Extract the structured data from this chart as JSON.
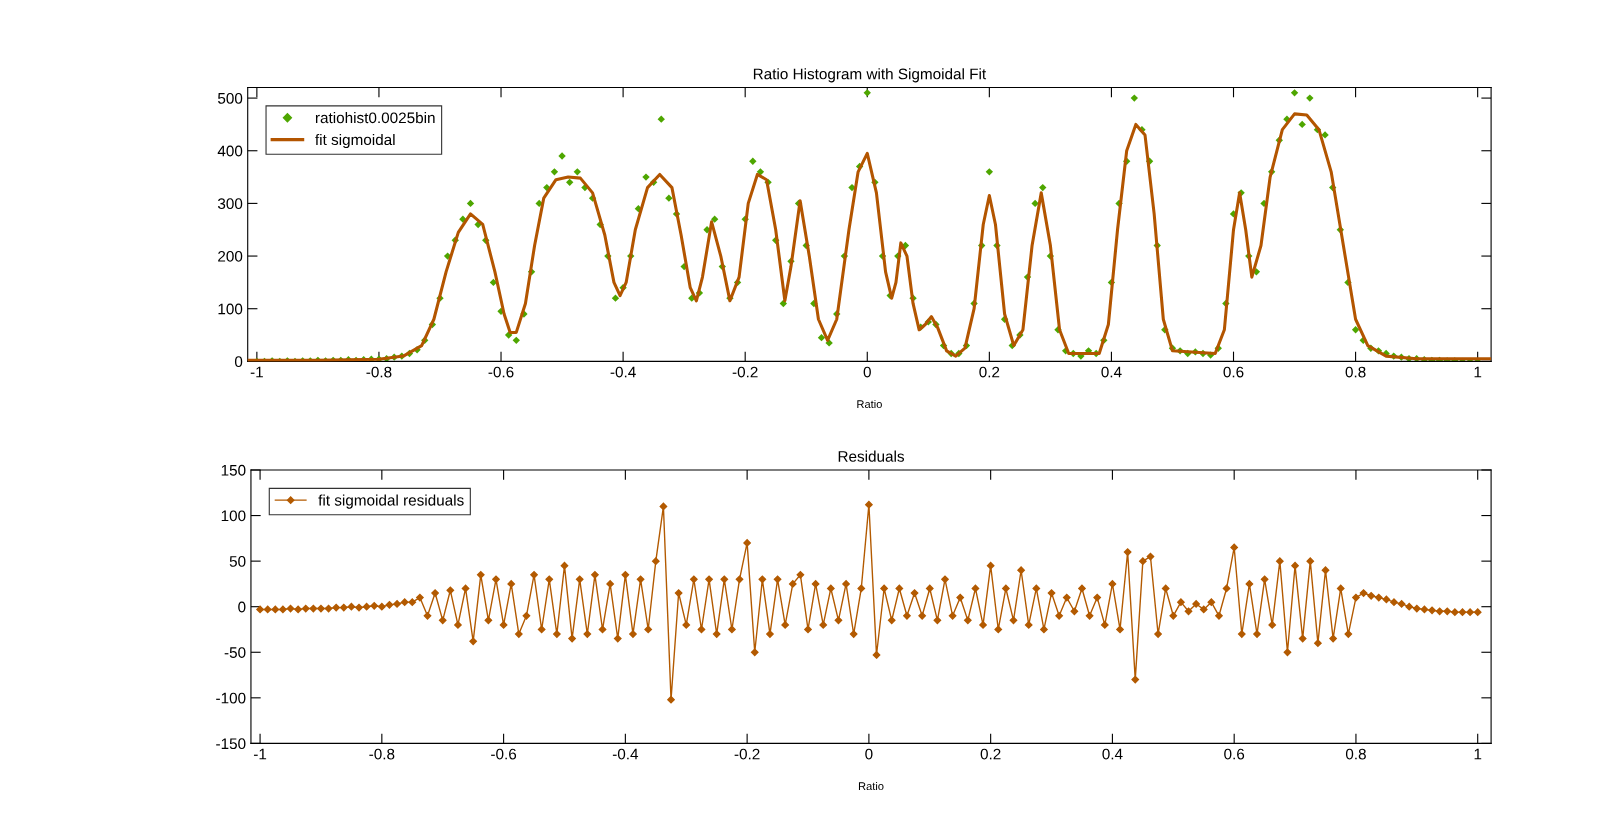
{
  "chart_data": [
    {
      "type": "scatter",
      "title": "Ratio Histogram with Sigmoidal Fit",
      "xlabel": "Ratio",
      "xlim": [
        -1.015,
        1.022
      ],
      "xticks": [
        -1,
        -0.8,
        -0.6,
        -0.4,
        -0.2,
        0,
        0.2,
        0.4,
        0.6,
        0.8,
        1
      ],
      "ylim": [
        0,
        520
      ],
      "yticks": [
        0,
        100,
        200,
        300,
        400,
        500
      ],
      "grid": false,
      "legend": "top left",
      "series": [
        {
          "name": "ratiohist0.0025bin",
          "marker": "diamond",
          "color": "#4ea600",
          "x": [
            -1,
            -0.9875,
            -0.975,
            -0.9625,
            -0.95,
            -0.9375,
            -0.925,
            -0.9125,
            -0.9,
            -0.8875,
            -0.875,
            -0.8625,
            -0.85,
            -0.8375,
            -0.825,
            -0.8125,
            -0.8,
            -0.7875,
            -0.775,
            -0.7625,
            -0.75,
            -0.7375,
            -0.725,
            -0.7125,
            -0.7,
            -0.6875,
            -0.675,
            -0.6625,
            -0.65,
            -0.6375,
            -0.625,
            -0.6125,
            -0.6,
            -0.5875,
            -0.575,
            -0.5625,
            -0.55,
            -0.5375,
            -0.525,
            -0.5125,
            -0.5,
            -0.4875,
            -0.475,
            -0.4625,
            -0.45,
            -0.4375,
            -0.425,
            -0.4125,
            -0.4,
            -0.3875,
            -0.375,
            -0.3625,
            -0.35,
            -0.3375,
            -0.325,
            -0.3125,
            -0.3,
            -0.2875,
            -0.275,
            -0.2625,
            -0.25,
            -0.2375,
            -0.225,
            -0.2125,
            -0.2,
            -0.1875,
            -0.175,
            -0.1625,
            -0.15,
            -0.1375,
            -0.125,
            -0.1125,
            -0.1,
            -0.0875,
            -0.075,
            -0.0625,
            -0.05,
            -0.0375,
            -0.025,
            -0.0125,
            0,
            0.0125,
            0.025,
            0.0375,
            0.05,
            0.0625,
            0.075,
            0.0875,
            0.1,
            0.1125,
            0.125,
            0.1375,
            0.15,
            0.1625,
            0.175,
            0.1875,
            0.2,
            0.2125,
            0.225,
            0.2375,
            0.25,
            0.2625,
            0.275,
            0.2875,
            0.3,
            0.3125,
            0.325,
            0.3375,
            0.35,
            0.3625,
            0.375,
            0.3875,
            0.4,
            0.4125,
            0.425,
            0.4375,
            0.45,
            0.4625,
            0.475,
            0.4875,
            0.5,
            0.5125,
            0.525,
            0.5375,
            0.55,
            0.5625,
            0.575,
            0.5875,
            0.6,
            0.6125,
            0.625,
            0.6375,
            0.65,
            0.6625,
            0.675,
            0.6875,
            0.7,
            0.7125,
            0.725,
            0.7375,
            0.75,
            0.7625,
            0.775,
            0.7875,
            0.8,
            0.8125,
            0.825,
            0.8375,
            0.85,
            0.8625,
            0.875,
            0.8875,
            0.9,
            0.9125,
            0.925,
            0.9375,
            0.95,
            0.9625,
            0.975,
            0.9875,
            1
          ],
          "values": [
            0,
            0,
            1,
            0,
            1,
            0,
            1,
            1,
            2,
            1,
            2,
            2,
            3,
            2,
            3,
            4,
            4,
            5,
            8,
            10,
            15,
            22,
            40,
            70,
            120,
            200,
            230,
            270,
            300,
            260,
            230,
            150,
            95,
            50,
            40,
            90,
            170,
            300,
            330,
            360,
            390,
            340,
            360,
            330,
            310,
            260,
            200,
            120,
            140,
            200,
            290,
            350,
            340,
            460,
            310,
            280,
            180,
            120,
            130,
            250,
            270,
            180,
            120,
            150,
            270,
            380,
            360,
            340,
            230,
            110,
            190,
            300,
            220,
            110,
            45,
            35,
            90,
            200,
            330,
            370,
            510,
            340,
            200,
            125,
            200,
            220,
            120,
            65,
            75,
            70,
            30,
            15,
            15,
            30,
            110,
            220,
            360,
            220,
            80,
            30,
            50,
            160,
            300,
            330,
            200,
            60,
            20,
            15,
            10,
            20,
            15,
            40,
            150,
            300,
            380,
            500,
            440,
            380,
            220,
            60,
            25,
            20,
            15,
            18,
            15,
            12,
            25,
            110,
            280,
            320,
            200,
            170,
            300,
            360,
            420,
            460,
            510,
            450,
            500,
            440,
            430,
            330,
            250,
            150,
            60,
            40,
            25,
            20,
            15,
            10,
            8,
            5,
            5,
            3,
            2,
            2,
            1,
            1,
            0,
            0,
            0
          ]
        },
        {
          "name": "fit sigmoidal",
          "type": "line",
          "marker": "none",
          "color": "#b35500",
          "x": [
            -1.015,
            -0.9,
            -0.8,
            -0.76,
            -0.73,
            -0.71,
            -0.69,
            -0.67,
            -0.65,
            -0.63,
            -0.61,
            -0.595,
            -0.585,
            -0.575,
            -0.56,
            -0.545,
            -0.53,
            -0.51,
            -0.49,
            -0.47,
            -0.45,
            -0.43,
            -0.415,
            -0.405,
            -0.395,
            -0.38,
            -0.36,
            -0.34,
            -0.32,
            -0.305,
            -0.29,
            -0.28,
            -0.27,
            -0.255,
            -0.24,
            -0.225,
            -0.21,
            -0.195,
            -0.18,
            -0.165,
            -0.15,
            -0.135,
            -0.125,
            -0.11,
            -0.095,
            -0.08,
            -0.065,
            -0.05,
            -0.03,
            -0.015,
            0,
            0.015,
            0.03,
            0.04,
            0.047,
            0.055,
            0.065,
            0.075,
            0.085,
            0.095,
            0.105,
            0.115,
            0.13,
            0.145,
            0.16,
            0.175,
            0.19,
            0.2,
            0.21,
            0.225,
            0.24,
            0.255,
            0.27,
            0.285,
            0.3,
            0.315,
            0.33,
            0.38,
            0.395,
            0.41,
            0.425,
            0.44,
            0.455,
            0.47,
            0.485,
            0.5,
            0.57,
            0.585,
            0.6,
            0.61,
            0.62,
            0.63,
            0.645,
            0.66,
            0.68,
            0.7,
            0.72,
            0.74,
            0.76,
            0.78,
            0.8,
            0.82,
            0.85,
            0.9,
            1.022
          ],
          "values": [
            2,
            2,
            4,
            10,
            30,
            80,
            170,
            245,
            280,
            260,
            170,
            90,
            55,
            55,
            110,
            220,
            310,
            345,
            350,
            348,
            320,
            240,
            150,
            125,
            150,
            250,
            330,
            355,
            330,
            240,
            140,
            115,
            160,
            265,
            200,
            115,
            160,
            300,
            355,
            345,
            250,
            115,
            180,
            305,
            200,
            80,
            40,
            80,
            250,
            360,
            395,
            320,
            170,
            120,
            150,
            225,
            200,
            110,
            60,
            70,
            85,
            65,
            20,
            10,
            25,
            100,
            260,
            315,
            260,
            90,
            30,
            60,
            220,
            320,
            220,
            60,
            15,
            15,
            70,
            250,
            400,
            450,
            430,
            280,
            80,
            20,
            15,
            60,
            250,
            320,
            250,
            160,
            220,
            350,
            440,
            470,
            468,
            440,
            360,
            220,
            80,
            30,
            10,
            5,
            5
          ]
        }
      ]
    },
    {
      "type": "line",
      "title": "Residuals",
      "xlabel": "Ratio",
      "xlim": [
        -1.015,
        1.022
      ],
      "xticks": [
        -1,
        -0.8,
        -0.6,
        -0.4,
        -0.2,
        0,
        0.2,
        0.4,
        0.6,
        0.8,
        1
      ],
      "ylim": [
        -150,
        150
      ],
      "yticks": [
        -150,
        -100,
        -50,
        0,
        50,
        100,
        150
      ],
      "grid": false,
      "legend": "top left",
      "series": [
        {
          "name": "fit sigmoidal residuals",
          "marker": "diamond",
          "line_style": "solid",
          "color": "#b35a00",
          "x": [
            -1,
            -0.9875,
            -0.975,
            -0.9625,
            -0.95,
            -0.9375,
            -0.925,
            -0.9125,
            -0.9,
            -0.8875,
            -0.875,
            -0.8625,
            -0.85,
            -0.8375,
            -0.825,
            -0.8125,
            -0.8,
            -0.7875,
            -0.775,
            -0.7625,
            -0.75,
            -0.7375,
            -0.725,
            -0.7125,
            -0.7,
            -0.6875,
            -0.675,
            -0.6625,
            -0.65,
            -0.6375,
            -0.625,
            -0.6125,
            -0.6,
            -0.5875,
            -0.575,
            -0.5625,
            -0.55,
            -0.5375,
            -0.525,
            -0.5125,
            -0.5,
            -0.4875,
            -0.475,
            -0.4625,
            -0.45,
            -0.4375,
            -0.425,
            -0.4125,
            -0.4,
            -0.3875,
            -0.375,
            -0.3625,
            -0.35,
            -0.3375,
            -0.325,
            -0.3125,
            -0.3,
            -0.2875,
            -0.275,
            -0.2625,
            -0.25,
            -0.2375,
            -0.225,
            -0.2125,
            -0.2,
            -0.1875,
            -0.175,
            -0.1625,
            -0.15,
            -0.1375,
            -0.125,
            -0.1125,
            -0.1,
            -0.0875,
            -0.075,
            -0.0625,
            -0.05,
            -0.0375,
            -0.025,
            -0.0125,
            0,
            0.0125,
            0.025,
            0.0375,
            0.05,
            0.0625,
            0.075,
            0.0875,
            0.1,
            0.1125,
            0.125,
            0.1375,
            0.15,
            0.1625,
            0.175,
            0.1875,
            0.2,
            0.2125,
            0.225,
            0.2375,
            0.25,
            0.2625,
            0.275,
            0.2875,
            0.3,
            0.3125,
            0.325,
            0.3375,
            0.35,
            0.3625,
            0.375,
            0.3875,
            0.4,
            0.4125,
            0.425,
            0.4375,
            0.45,
            0.4625,
            0.475,
            0.4875,
            0.5,
            0.5125,
            0.525,
            0.5375,
            0.55,
            0.5625,
            0.575,
            0.5875,
            0.6,
            0.6125,
            0.625,
            0.6375,
            0.65,
            0.6625,
            0.675,
            0.6875,
            0.7,
            0.7125,
            0.725,
            0.7375,
            0.75,
            0.7625,
            0.775,
            0.7875,
            0.8,
            0.8125,
            0.825,
            0.8375,
            0.85,
            0.8625,
            0.875,
            0.8875,
            0.9,
            0.9125,
            0.925,
            0.9375,
            0.95,
            0.9625,
            0.975,
            0.9875,
            1
          ],
          "values": [
            -3,
            -3,
            -3,
            -3,
            -2,
            -3,
            -2,
            -2,
            -2,
            -2,
            -1,
            -1,
            0,
            -1,
            0,
            1,
            0,
            2,
            3,
            5,
            5,
            10,
            -10,
            15,
            -15,
            18,
            -20,
            20,
            -38,
            35,
            -15,
            30,
            -20,
            25,
            -30,
            -10,
            35,
            -25,
            30,
            -30,
            45,
            -35,
            30,
            -30,
            35,
            -25,
            25,
            -35,
            35,
            -30,
            30,
            -25,
            50,
            110,
            -102,
            15,
            -20,
            30,
            -25,
            30,
            -30,
            30,
            -25,
            30,
            70,
            -50,
            30,
            -30,
            30,
            -20,
            25,
            35,
            -25,
            25,
            -20,
            20,
            -15,
            25,
            -30,
            20,
            112,
            -53,
            20,
            -15,
            20,
            -10,
            15,
            -10,
            20,
            -15,
            30,
            -10,
            10,
            -15,
            20,
            -20,
            45,
            -25,
            20,
            -15,
            40,
            -20,
            20,
            -25,
            15,
            -10,
            10,
            -5,
            20,
            -10,
            10,
            -20,
            25,
            -25,
            60,
            -80,
            50,
            55,
            -30,
            20,
            -10,
            5,
            -5,
            3,
            -3,
            5,
            -10,
            20,
            65,
            -30,
            25,
            -30,
            30,
            -20,
            50,
            -50,
            45,
            -35,
            50,
            -40,
            40,
            -35,
            20,
            -30,
            10,
            15,
            12,
            10,
            8,
            5,
            3,
            0,
            -2,
            -3,
            -4,
            -5,
            -5,
            -6,
            -6,
            -6,
            -6
          ]
        }
      ]
    }
  ]
}
